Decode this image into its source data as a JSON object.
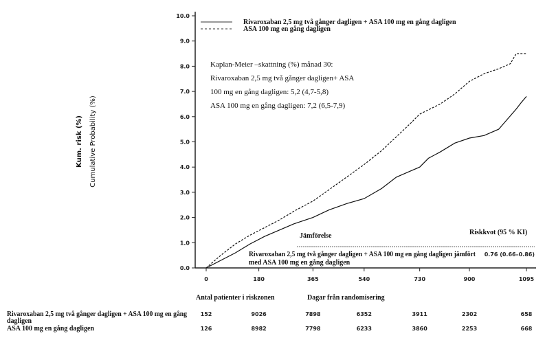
{
  "chart_data": {
    "type": "line",
    "ylabel": "Cumulative Probability (%)",
    "ylabel_overlay": "Kum. risk (%)",
    "xlabel": "Dagar från randomisering",
    "xticks": [
      0,
      180,
      365,
      540,
      730,
      900,
      1095
    ],
    "xlim": [
      0,
      1095
    ],
    "yticks": [
      "0.0",
      "1.0",
      "2.0",
      "3.0",
      "4.0",
      "5.0",
      "6.0",
      "7.0",
      "8.0",
      "9.0",
      "10.0"
    ],
    "ylim": [
      0,
      10
    ],
    "legend": "top",
    "series": [
      {
        "name": "Rivaroxaban 2,5 mg två gånger dagligen + ASA 100 mg en gång dagligen",
        "style": "solid",
        "x": [
          0,
          50,
          100,
          150,
          200,
          250,
          300,
          365,
          420,
          480,
          540,
          600,
          650,
          700,
          730,
          760,
          800,
          850,
          900,
          950,
          1000,
          1030,
          1060,
          1080,
          1095
        ],
        "y": [
          0,
          0.3,
          0.6,
          0.95,
          1.25,
          1.5,
          1.75,
          2.0,
          2.3,
          2.55,
          2.75,
          3.15,
          3.6,
          3.85,
          4.0,
          4.35,
          4.6,
          4.95,
          5.15,
          5.25,
          5.5,
          5.9,
          6.3,
          6.6,
          6.8
        ]
      },
      {
        "name": "ASA 100 mg en gång dagligen",
        "style": "dashed",
        "x": [
          0,
          50,
          100,
          150,
          200,
          250,
          300,
          365,
          420,
          480,
          540,
          600,
          650,
          700,
          730,
          800,
          850,
          900,
          950,
          1000,
          1040,
          1060,
          1095
        ],
        "y": [
          0,
          0.5,
          0.95,
          1.3,
          1.6,
          1.9,
          2.25,
          2.65,
          3.1,
          3.6,
          4.1,
          4.65,
          5.2,
          5.75,
          6.1,
          6.5,
          6.9,
          7.4,
          7.7,
          7.9,
          8.1,
          8.5,
          8.5
        ]
      }
    ],
    "annotation": [
      "Kaplan-Meier –skattning (%) månad 30:",
      "Rivaroxaban 2,5 mg två gånger dagligen+ ASA",
      "100 mg en gång dagligen: 5,2 (4,7-5,8)",
      "ASA 100 mg en gång dagligen: 7,2 (6,5-7,9)"
    ],
    "comparison": {
      "header": "Jämförelse",
      "hr_header": "Riskkvot (95 % KI)",
      "row_line1": "Rivaroxaban 2,5 mg två gånger dagligen + ASA 100 mg en gång dagligen jämfört",
      "row_line2": "med ASA 100 mg en gång dagligen",
      "hr": "0.76 (0.66–0.86)"
    },
    "risk_table": {
      "title": "Antal patienter i riskzonen",
      "rows": [
        {
          "label1": "Rivaroxaban 2,5 mg två gånger dagligen + ASA 100 mg en gång",
          "label2": "dagligen",
          "values": [
            "152",
            "9026",
            "7898",
            "6352",
            "3911",
            "2302",
            "658"
          ]
        },
        {
          "label1": "ASA 100 mg en gång dagligen",
          "label2": "",
          "values": [
            "126",
            "8982",
            "7798",
            "6233",
            "3860",
            "2253",
            "668"
          ]
        }
      ]
    }
  }
}
